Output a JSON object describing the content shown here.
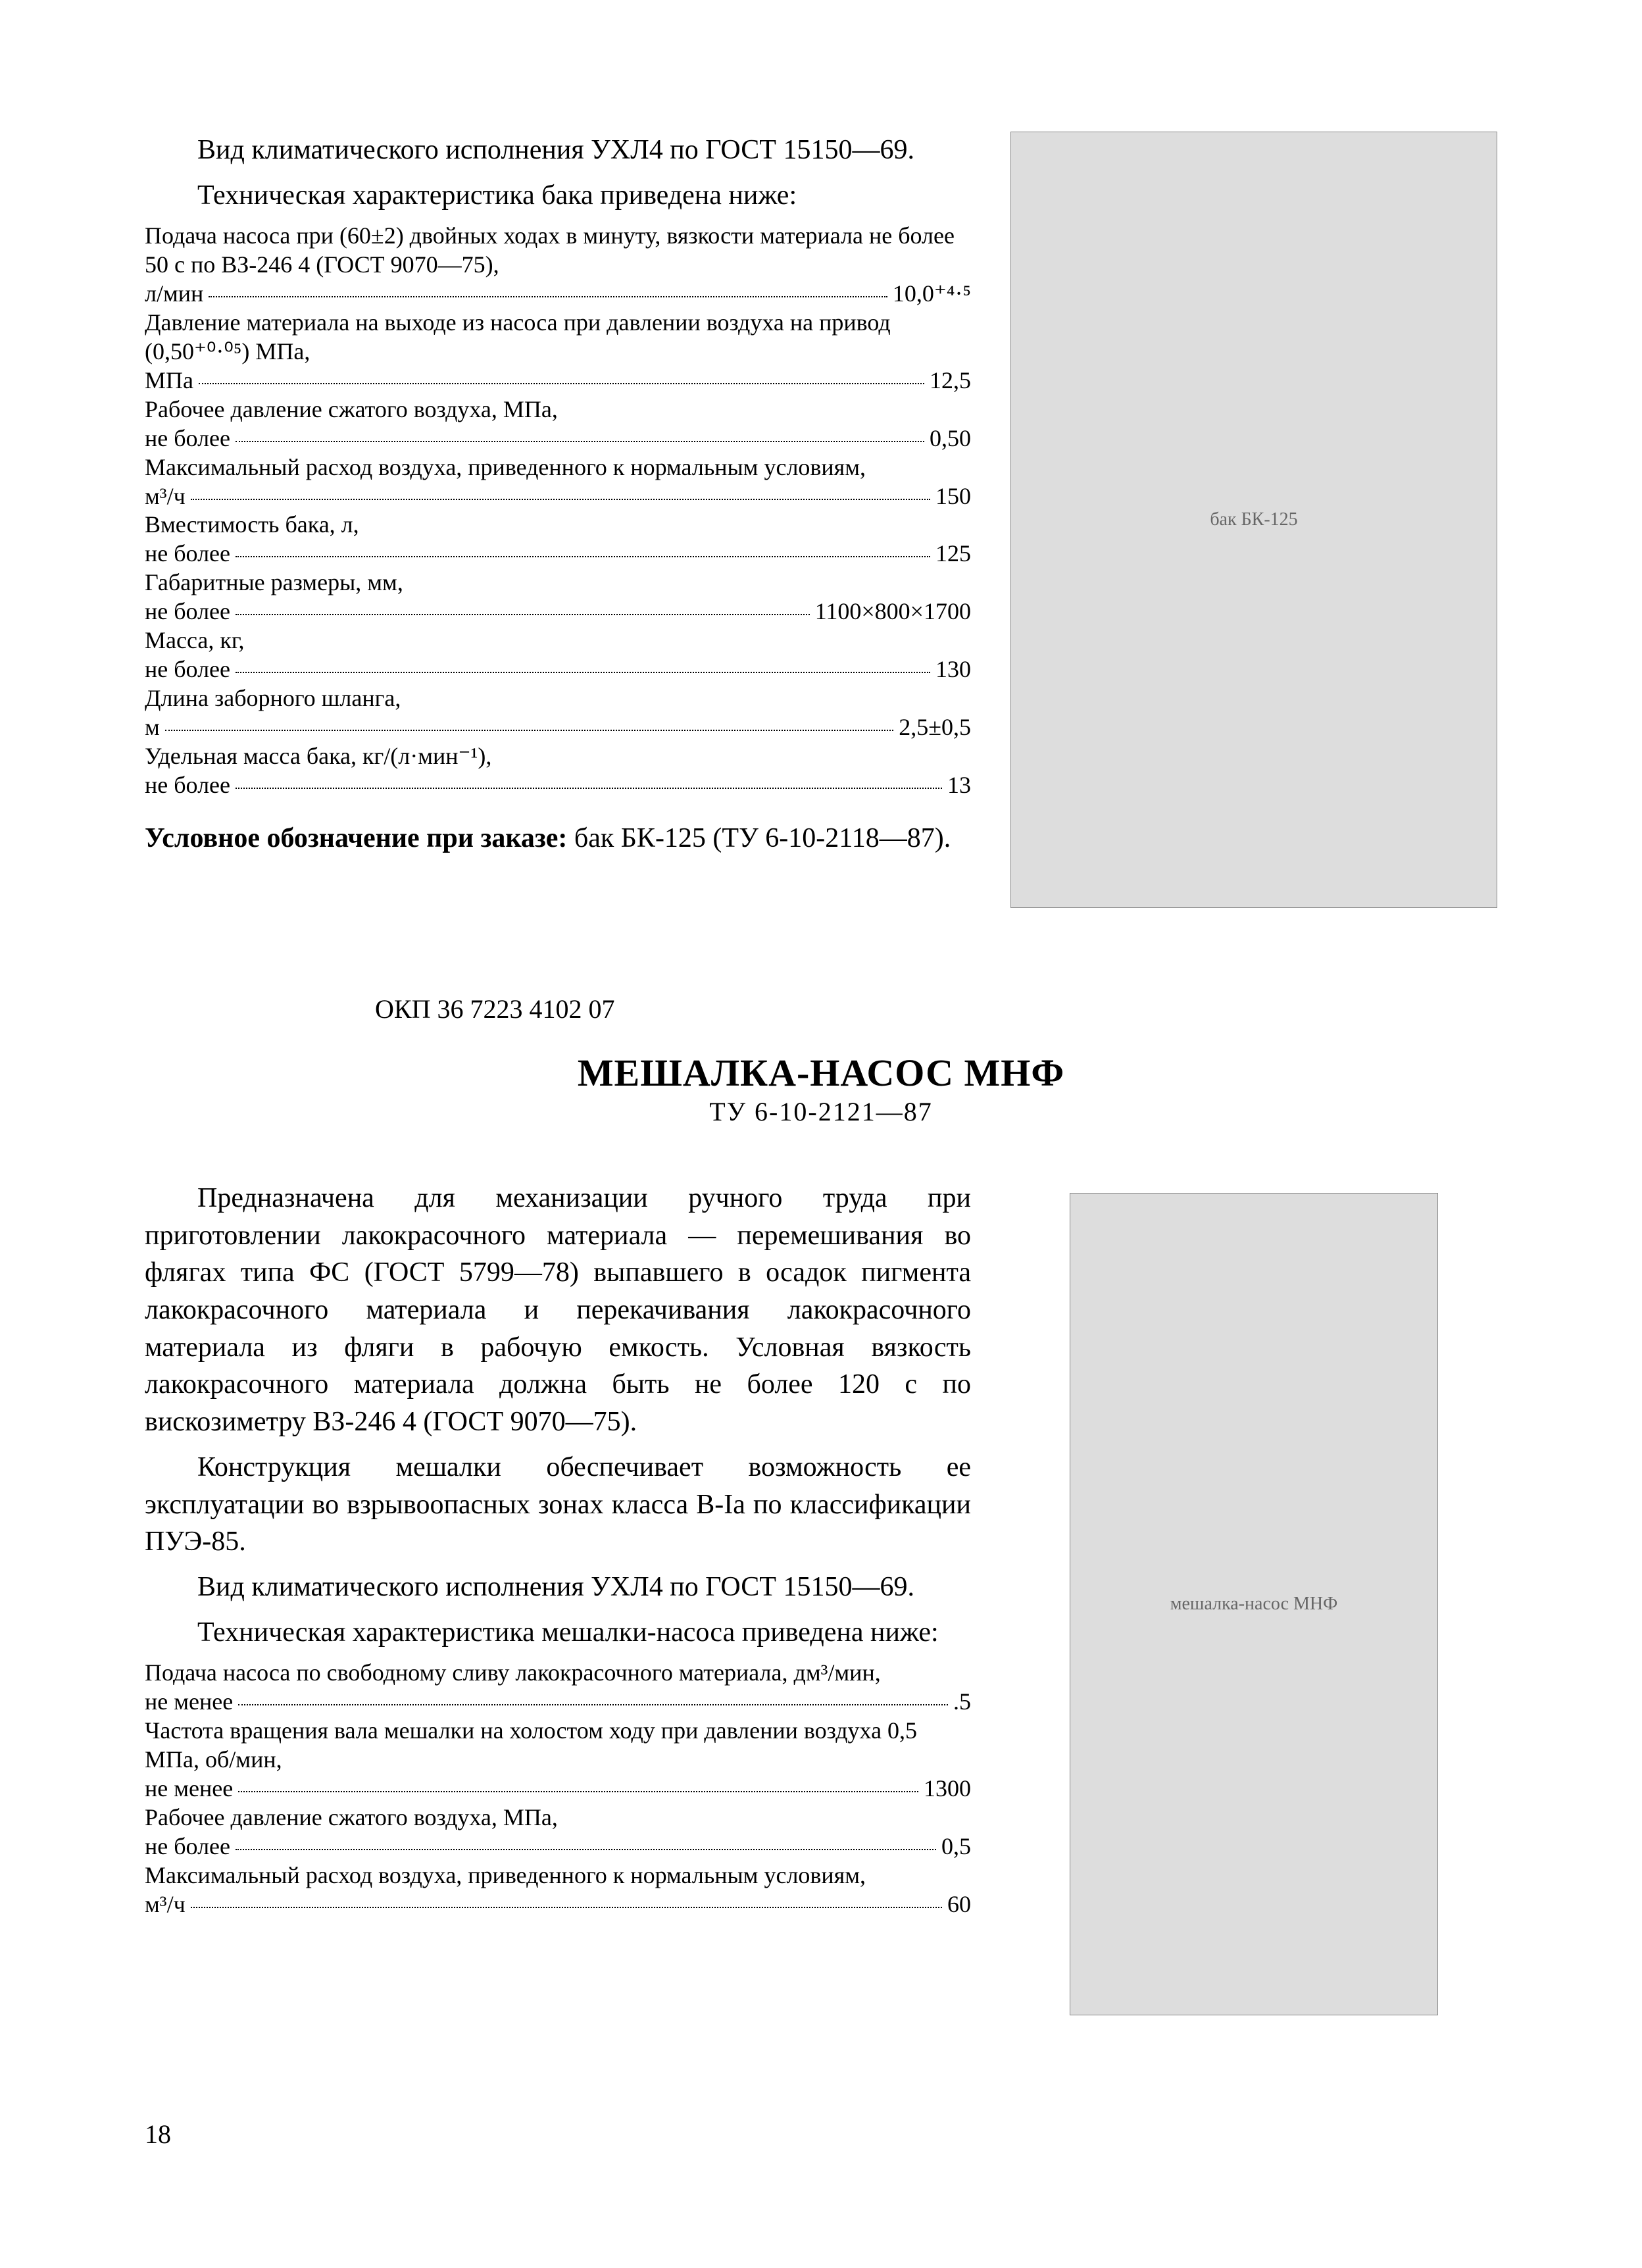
{
  "section1": {
    "para1": "Вид климатического исполнения УХЛ4 по ГОСТ 15150—69.",
    "para2": "Техническая характеристика бака приведена ниже:",
    "specs": [
      {
        "label": "Подача насоса при (60±2) двойных ходах в минуту, вязкости материала не более 50 с по ВЗ-246 4 (ГОСТ 9070—75), л/мин",
        "value": "10,0⁺⁴·⁵"
      },
      {
        "label": "Давление материала на выходе из насоса при давлении воздуха на привод (0,50⁺⁰·⁰⁵) МПа, МПа",
        "value": "12,5"
      },
      {
        "label": "Рабочее давление сжатого воздуха, МПа, не более",
        "value": "0,50"
      },
      {
        "label": "Максимальный расход воздуха, приведенного к нормальным условиям, м³/ч",
        "value": "150"
      },
      {
        "label": "Вместимость бака, л, не более",
        "value": "125"
      },
      {
        "label": "Габаритные размеры, мм, не более",
        "value": "1100×800×1700"
      },
      {
        "label": "Масса, кг, не более",
        "value": "130"
      },
      {
        "label": "Длина заборного шланга, м",
        "value": "2,5±0,5"
      },
      {
        "label": "Удельная масса бака, кг/(л·мин⁻¹), не более",
        "value": "13"
      }
    ],
    "order_bold": "Условное обозначение при заказе: ",
    "order_rest": "бак БК-125 (ТУ 6-10-2118—87).",
    "image_alt": "бак БК-125"
  },
  "okp": "ОКП 36 7223 4102 07",
  "section2": {
    "title": "МЕШАЛКА-НАСОС  МНФ",
    "subtitle": "ТУ   6-10-2121—87",
    "para1": "Предназначена для механизации ручного труда при приготовлении лакокрасочного материала — перемешивания во флягах типа ФС (ГОСТ 5799—78) выпавшего в осадок пигмента лакокрасочного материала и перекачивания лакокрасочного материала из фляги в рабочую емкость. Условная вязкость лакокрасочного материала должна быть не более 120 с по вискозиметру ВЗ-246 4 (ГОСТ 9070—75).",
    "para2": "Конструкция мешалки обеспечивает возможность ее эксплуатации во взрывоопасных зонах класса В-Iа по классификации ПУЭ-85.",
    "para3": "Вид климатического исполнения УХЛ4 по ГОСТ 15150—69.",
    "para4": "Техническая характеристика мешалки-насоса приведена ниже:",
    "specs": [
      {
        "label": "Подача насоса по свободному сливу лакокрасочного материала, дм³/мин, не менее",
        "value": ".5"
      },
      {
        "label": "Частота вращения вала мешалки на холостом ходу при давлении воздуха 0,5 МПа, об/мин, не менее",
        "value": "1300"
      },
      {
        "label": "Рабочее давление сжатого воздуха, МПа, не более",
        "value": "0,5"
      },
      {
        "label": "Максимальный расход воздуха, приведенного к нормальным условиям, м³/ч",
        "value": "60"
      }
    ],
    "image_alt": "мешалка-насос МНФ"
  },
  "page_number": "18",
  "style": {
    "body_font_size_pt": 42,
    "spec_font_size_pt": 36,
    "title_font_size_pt": 58,
    "text_color": "#000000",
    "background_color": "#ffffff",
    "image_ph_bg": "#dddddd",
    "image_ph_border": "#888888"
  }
}
